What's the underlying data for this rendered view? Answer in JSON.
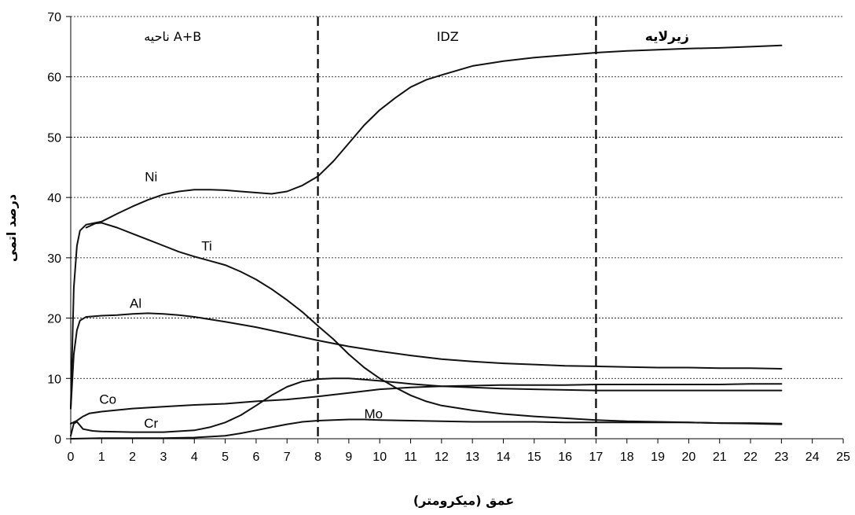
{
  "chart_data": {
    "type": "line",
    "xlabel": "عمق (میکرومتر)",
    "ylabel": "درصد اتمی",
    "xlim": [
      0,
      25
    ],
    "ylim": [
      0,
      70
    ],
    "xticks": [
      "0",
      "1",
      "2",
      "3",
      "4",
      "5",
      "6",
      "7",
      "8",
      "9",
      "10",
      "11",
      "12",
      "13",
      "14",
      "15",
      "16",
      "17",
      "18",
      "19",
      "20",
      "21",
      "22",
      "23",
      "24",
      "25"
    ],
    "yticks": [
      "0",
      "10",
      "20",
      "30",
      "40",
      "50",
      "60",
      "70"
    ],
    "grid": "horizontal-dotted",
    "boundaries": [
      8,
      17
    ],
    "regions": [
      {
        "label": "ناحیه A+B",
        "x": 3.3,
        "bold": false
      },
      {
        "label": "IDZ",
        "x": 12.2,
        "bold": false
      },
      {
        "label": "زیرلایه",
        "x": 19.3,
        "bold": true
      }
    ],
    "series": [
      {
        "name": "Ni",
        "label_at": [
          2.6,
          43.5
        ],
        "x": [
          0,
          0.1,
          0.2,
          0.3,
          0.5,
          0.8,
          1,
          1.5,
          2,
          2.5,
          3,
          3.5,
          4,
          4.5,
          5,
          5.5,
          6,
          6.5,
          7,
          7.5,
          8,
          8.5,
          9,
          9.5,
          10,
          10.5,
          11,
          11.5,
          12,
          13,
          14,
          15,
          16,
          17,
          18,
          19,
          20,
          21,
          22,
          23
        ],
        "y": [
          5,
          25,
          32,
          34.5,
          35.5,
          35.8,
          36,
          37.3,
          38.5,
          39.6,
          40.5,
          41,
          41.3,
          41.3,
          41.2,
          41,
          40.8,
          40.6,
          41,
          42,
          43.5,
          46,
          49,
          52,
          54.5,
          56.5,
          58.3,
          59.5,
          60.3,
          61.8,
          62.6,
          63.2,
          63.6,
          64,
          64.3,
          64.5,
          64.7,
          64.8,
          65,
          65.2
        ]
      },
      {
        "name": "Ti",
        "label_at": [
          4.4,
          32
        ],
        "x": [
          0.5,
          0.8,
          1,
          1.5,
          2,
          2.5,
          3,
          3.5,
          4,
          4.5,
          5,
          5.5,
          6,
          6.5,
          7,
          7.5,
          8,
          8.5,
          9,
          9.5,
          10,
          10.5,
          11,
          11.5,
          12,
          13,
          14,
          15,
          16,
          17,
          18,
          19,
          20,
          21,
          22,
          23
        ],
        "y": [
          35,
          35.7,
          35.8,
          35,
          34,
          33,
          32,
          31,
          30.2,
          29.5,
          28.8,
          27.7,
          26.4,
          24.8,
          23,
          21,
          18.7,
          16.5,
          14,
          11.8,
          10,
          8.5,
          7.2,
          6.2,
          5.5,
          4.7,
          4.1,
          3.7,
          3.4,
          3.1,
          2.9,
          2.8,
          2.7,
          2.6,
          2.5,
          2.4
        ]
      },
      {
        "name": "Al",
        "label_at": [
          2.1,
          22.5
        ],
        "x": [
          0,
          0.1,
          0.2,
          0.3,
          0.5,
          1,
          1.5,
          2,
          2.5,
          3,
          3.5,
          4,
          4.5,
          5,
          6,
          7,
          8,
          9,
          10,
          11,
          12,
          13,
          14,
          15,
          16,
          17,
          18,
          19,
          20,
          21,
          22,
          23
        ],
        "y": [
          5,
          14,
          18,
          19.6,
          20.2,
          20.4,
          20.5,
          20.7,
          20.8,
          20.7,
          20.5,
          20.2,
          19.8,
          19.4,
          18.5,
          17.4,
          16.3,
          15.3,
          14.5,
          13.8,
          13.2,
          12.8,
          12.5,
          12.3,
          12.1,
          12,
          11.9,
          11.8,
          11.8,
          11.7,
          11.7,
          11.6
        ]
      },
      {
        "name": "Co",
        "label_at": [
          1.2,
          6.6
        ],
        "x": [
          0,
          0.2,
          0.4,
          0.6,
          1,
          2,
          3,
          4,
          5,
          6,
          7,
          8,
          9,
          10,
          11,
          12,
          13,
          14,
          15,
          16,
          17,
          18,
          19,
          20,
          21,
          22,
          23
        ],
        "y": [
          2.5,
          3,
          3.7,
          4.2,
          4.5,
          5,
          5.3,
          5.6,
          5.8,
          6.2,
          6.5,
          7,
          7.6,
          8.2,
          8.5,
          8.7,
          8.8,
          8.9,
          8.9,
          8.9,
          9,
          9,
          9,
          9,
          9,
          9.1,
          9.1
        ]
      },
      {
        "name": "Cr",
        "label_at": [
          2.6,
          2.6
        ],
        "x": [
          0,
          0.1,
          0.2,
          0.4,
          0.7,
          1,
          2,
          3,
          4,
          4.5,
          5,
          5.5,
          6,
          6.5,
          7,
          7.5,
          8,
          8.5,
          9,
          9.5,
          10,
          11,
          12,
          13,
          14,
          15,
          16,
          17,
          18,
          19,
          20,
          21,
          22,
          23
        ],
        "y": [
          0.5,
          2.5,
          2.8,
          1.6,
          1.3,
          1.2,
          1.1,
          1.1,
          1.4,
          1.9,
          2.7,
          3.9,
          5.5,
          7.2,
          8.6,
          9.5,
          9.9,
          10,
          10,
          9.8,
          9.6,
          9.1,
          8.7,
          8.5,
          8.3,
          8.2,
          8.1,
          8,
          8,
          8,
          8,
          8,
          8,
          8
        ]
      },
      {
        "name": "Mo",
        "label_at": [
          9.8,
          4.2
        ],
        "x": [
          0,
          1,
          2,
          3,
          4,
          5,
          5.5,
          6,
          6.5,
          7,
          7.5,
          8,
          8.5,
          9,
          9.5,
          10,
          11,
          12,
          13,
          14,
          15,
          16,
          17,
          18,
          19,
          20,
          21,
          22,
          23
        ],
        "y": [
          0,
          0.1,
          0.1,
          0.1,
          0.2,
          0.5,
          0.9,
          1.4,
          1.9,
          2.4,
          2.8,
          3,
          3.1,
          3.2,
          3.2,
          3.1,
          3,
          2.9,
          2.8,
          2.8,
          2.8,
          2.7,
          2.7,
          2.7,
          2.7,
          2.7,
          2.6,
          2.6,
          2.5
        ]
      }
    ]
  }
}
